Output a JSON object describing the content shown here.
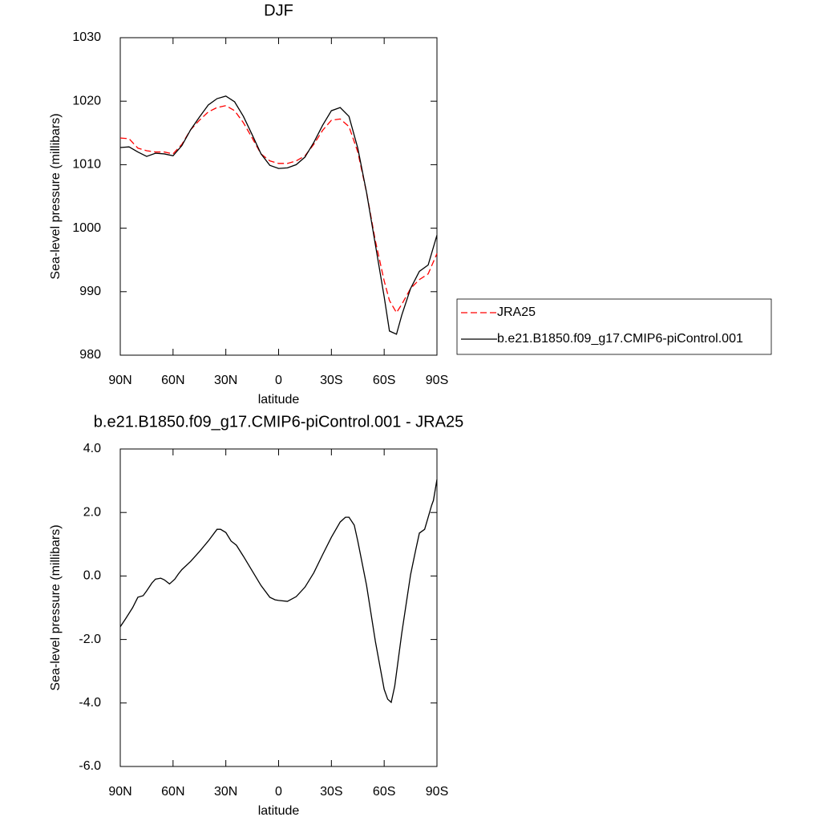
{
  "chart_data": [
    {
      "type": "line",
      "title": "DJF",
      "xlabel": "latitude",
      "ylabel": "Sea-level pressure (millibars)",
      "x": [
        90,
        85,
        80,
        75,
        70,
        65,
        60,
        55,
        50,
        45,
        40,
        35,
        30,
        25,
        20,
        15,
        10,
        5,
        0,
        -5,
        -10,
        -15,
        -20,
        -25,
        -30,
        -35,
        -40,
        -45,
        -50,
        -55,
        -60,
        -63,
        -67,
        -70,
        -75,
        -80,
        -85,
        -90
      ],
      "series": [
        {
          "name": "JRA25",
          "color": "#ff0000",
          "dashed": true,
          "values": [
            1014.2,
            1014.1,
            1012.6,
            1012.2,
            1012.0,
            1012.0,
            1011.7,
            1013.2,
            1015.5,
            1017.0,
            1018.3,
            1019.0,
            1019.3,
            1018.5,
            1016.6,
            1014.2,
            1011.7,
            1010.6,
            1010.2,
            1010.2,
            1010.6,
            1011.4,
            1013.2,
            1015.4,
            1017.0,
            1017.2,
            1016.0,
            1012.0,
            1005.6,
            998.0,
            991.7,
            988.6,
            986.7,
            988.0,
            990.5,
            991.9,
            992.8,
            996.0
          ]
        },
        {
          "name": "b.e21.B1850.f09_g17.CMIP6-piControl.001",
          "color": "#000000",
          "dashed": false,
          "values": [
            1012.7,
            1012.8,
            1012.0,
            1011.3,
            1011.8,
            1011.7,
            1011.4,
            1013.0,
            1015.5,
            1017.5,
            1019.4,
            1020.4,
            1020.8,
            1019.9,
            1017.6,
            1014.7,
            1011.7,
            1009.9,
            1009.4,
            1009.5,
            1010.0,
            1011.2,
            1013.5,
            1016.2,
            1018.5,
            1019.0,
            1017.6,
            1012.6,
            1005.6,
            997.4,
            989.2,
            983.8,
            983.3,
            986.3,
            990.5,
            993.2,
            994.2,
            998.9
          ]
        }
      ],
      "xlim": [
        90,
        -90
      ],
      "xticks": [
        {
          "value": 90,
          "label": "90N"
        },
        {
          "value": 60,
          "label": "60N"
        },
        {
          "value": 30,
          "label": "30N"
        },
        0,
        {
          "value": -30,
          "label": "30S"
        },
        {
          "value": -60,
          "label": "60S"
        },
        {
          "value": -90,
          "label": "90S"
        }
      ],
      "ylim": [
        980,
        1030
      ],
      "yticks": [
        980,
        990,
        1000,
        1010,
        1020,
        1030
      ],
      "grid": false,
      "legend": "right"
    },
    {
      "type": "line",
      "title": "b.e21.B1850.f09_g17.CMIP6-piControl.001 - JRA25",
      "xlabel": "latitude",
      "ylabel": "Sea-level pressure (millibars)",
      "x": [
        90,
        87,
        83,
        80,
        77,
        75,
        72,
        70,
        67,
        65,
        62,
        59,
        57,
        55,
        50,
        45,
        40,
        35,
        33,
        30,
        27,
        24,
        20,
        15,
        10,
        5,
        2,
        0,
        -5,
        -10,
        -15,
        -20,
        -25,
        -30,
        -35,
        -38,
        -40,
        -43,
        -45,
        -50,
        -55,
        -60,
        -62,
        -64,
        -66,
        -70,
        -75,
        -78,
        -80,
        -83,
        -85,
        -87,
        -88,
        -90
      ],
      "series": [
        {
          "color": "#000000",
          "dashed": false,
          "values": [
            -1.6,
            -1.35,
            -1.0,
            -0.67,
            -0.62,
            -0.47,
            -0.22,
            -0.1,
            -0.07,
            -0.12,
            -0.25,
            -0.1,
            0.06,
            0.2,
            0.46,
            0.77,
            1.1,
            1.47,
            1.47,
            1.37,
            1.1,
            0.97,
            0.62,
            0.16,
            -0.3,
            -0.67,
            -0.75,
            -0.77,
            -0.8,
            -0.65,
            -0.35,
            0.1,
            0.67,
            1.22,
            1.7,
            1.85,
            1.85,
            1.6,
            1.1,
            -0.3,
            -2.06,
            -3.57,
            -3.88,
            -3.98,
            -3.47,
            -1.8,
            0.04,
            0.84,
            1.35,
            1.47,
            1.85,
            2.23,
            2.38,
            3.04
          ]
        }
      ],
      "xlim": [
        90,
        -90
      ],
      "xticks": [
        {
          "value": 90,
          "label": "90N"
        },
        {
          "value": 60,
          "label": "60N"
        },
        {
          "value": 30,
          "label": "30N"
        },
        0,
        {
          "value": -30,
          "label": "30S"
        },
        {
          "value": -60,
          "label": "60S"
        },
        {
          "value": -90,
          "label": "90S"
        }
      ],
      "ylim": [
        -6,
        4
      ],
      "yticks": [
        {
          "value": -6,
          "label": "-6.0"
        },
        {
          "value": -4,
          "label": "-4.0"
        },
        {
          "value": -2,
          "label": "-2.0"
        },
        {
          "value": 0,
          "label": "0.0"
        },
        {
          "value": 2,
          "label": "2.0"
        },
        {
          "value": 4,
          "label": "4.0"
        }
      ],
      "grid": false
    }
  ]
}
